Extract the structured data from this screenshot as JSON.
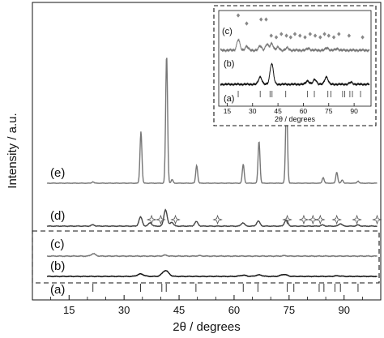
{
  "chart_data": {
    "type": "line",
    "xlabel": "2θ / degrees",
    "ylabel": "Intensity / a.u.",
    "xlim": [
      5,
      100
    ],
    "x_ticks": [
      15,
      30,
      45,
      60,
      75,
      90
    ],
    "reference_pattern_label": "(a)",
    "reference_peaks": [
      21.5,
      34.5,
      40.3,
      41.5,
      49.6,
      62.5,
      66.5,
      74.5,
      76.3,
      83.2,
      84.5,
      87.5,
      89.0,
      93.8
    ],
    "series": [
      {
        "name": "(b)",
        "color": "#111111",
        "peaks": [
          [
            34.5,
            0.25
          ],
          [
            41.3,
            0.6
          ],
          [
            62.5,
            0.12
          ],
          [
            66.8,
            0.15
          ],
          [
            73.6,
            0.2
          ],
          [
            88.2,
            0.06
          ]
        ]
      },
      {
        "name": "(c)",
        "color": "#777777",
        "peaks": [
          [
            21.6,
            0.3
          ],
          [
            41.2,
            0.12
          ],
          [
            50.5,
            0.05
          ],
          [
            73.8,
            0.05
          ]
        ]
      },
      {
        "name": "(d)",
        "color": "#444444",
        "peaks": [
          [
            21.5,
            0.12
          ],
          [
            34.5,
            0.8
          ],
          [
            37.1,
            0.3
          ],
          [
            41.3,
            1.45
          ],
          [
            43.0,
            0.35
          ],
          [
            49.7,
            0.4
          ],
          [
            62.4,
            0.3
          ],
          [
            66.6,
            0.45
          ],
          [
            74.2,
            0.55
          ],
          [
            84.1,
            0.1
          ],
          [
            89.0,
            0.22
          ],
          [
            93.8,
            0.1
          ]
        ],
        "star_markers": [
          37.5,
          40.0,
          44.0,
          55.5,
          74.5,
          79.0,
          81.5,
          83.5,
          88.0,
          93.5,
          99.0
        ]
      },
      {
        "name": "(e)",
        "color": "#777777",
        "peaks": [
          [
            21.5,
            0.08
          ],
          [
            34.6,
            2.9
          ],
          [
            41.6,
            7.2
          ],
          [
            43.1,
            0.2
          ],
          [
            49.8,
            1.0
          ],
          [
            62.5,
            1.06
          ],
          [
            66.8,
            2.36
          ],
          [
            74.3,
            4.72
          ],
          [
            84.3,
            0.32
          ],
          [
            88.0,
            0.62
          ],
          [
            89.5,
            0.18
          ],
          [
            93.8,
            0.12
          ]
        ]
      }
    ],
    "inset": {
      "xlabel": "2θ / degrees",
      "xlim": [
        10,
        100
      ],
      "x_ticks": [
        15,
        30,
        45,
        60,
        75,
        90
      ],
      "reference_pattern_label": "(a)",
      "reference_peaks": [
        21.5,
        34.5,
        40.3,
        41.5,
        49.6,
        62.5,
        66.5,
        74.5,
        76.3,
        83.2,
        84.5,
        87.5,
        89.0,
        93.8
      ],
      "series": [
        {
          "name": "(b)",
          "color": "#111111",
          "peaks": [
            [
              34.5,
              0.3
            ],
            [
              41.3,
              0.85
            ],
            [
              62.5,
              0.14
            ],
            [
              66.8,
              0.2
            ],
            [
              73.6,
              0.3
            ],
            [
              88.2,
              0.08
            ]
          ]
        },
        {
          "name": "(c)",
          "color": "#777777",
          "peaks": [
            [
              21.6,
              0.55
            ],
            [
              26.5,
              0.2
            ],
            [
              34.5,
              0.22
            ],
            [
              38.5,
              0.3
            ],
            [
              41.3,
              0.35
            ],
            [
              45,
              0.15
            ],
            [
              50.5,
              0.12
            ],
            [
              63,
              0.1
            ],
            [
              74,
              0.12
            ],
            [
              80,
              0.08
            ]
          ],
          "diamond_markers": [
            21.5,
            26.5,
            35.0,
            38.0,
            41.0,
            44.0,
            47.0,
            50.0,
            52.5,
            55.0,
            58.0,
            61.0,
            64.0,
            67.0,
            70.0,
            72.5,
            75.0,
            78.0,
            81.0,
            87.0,
            95.0
          ]
        }
      ]
    }
  }
}
